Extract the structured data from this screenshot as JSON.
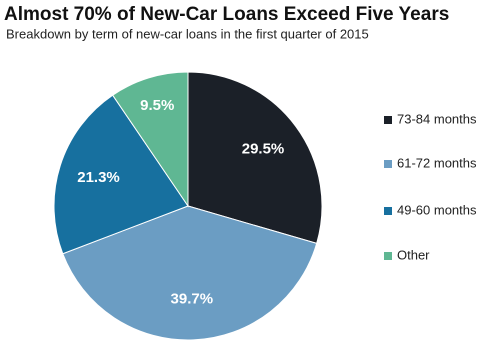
{
  "chart_data": {
    "type": "pie",
    "title": "Almost 70% of New-Car Loans Exceed Five Years",
    "subtitle": "Breakdown by term of new-car loans in the first quarter of 2015",
    "categories": [
      "73-84 months",
      "61-72 months",
      "49-60 months",
      "Other"
    ],
    "values": [
      29.5,
      39.7,
      21.3,
      9.5
    ],
    "value_labels": [
      "29.5%",
      "39.7%",
      "21.3%",
      "9.5%"
    ],
    "colors": [
      "#1b2028",
      "#6b9dc3",
      "#17709f",
      "#5fb793"
    ],
    "legend": "right"
  }
}
